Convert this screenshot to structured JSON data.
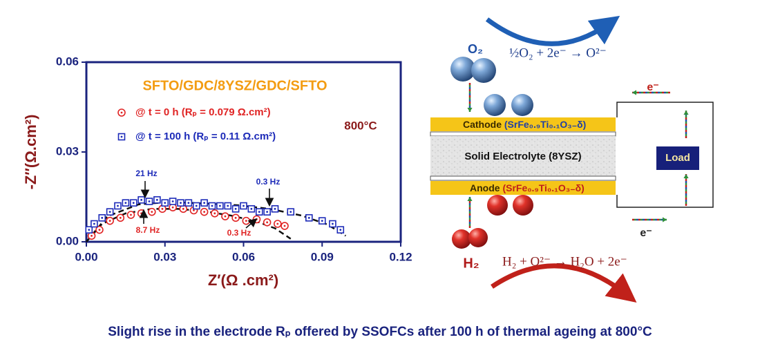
{
  "chart_data": {
    "type": "scatter",
    "title": "SFTO/GDC/8YSZ/GDC/SFTO",
    "title_color": "#f39c12",
    "x_label": "Z′(Ω .cm²)",
    "y_label": "-Z″(Ω.cm²)",
    "xlim": [
      0,
      0.12
    ],
    "ylim": [
      0,
      0.06
    ],
    "xticks": [
      {
        "value": 0,
        "label": "0.00"
      },
      {
        "value": 0.03,
        "label": "0.03"
      },
      {
        "value": 0.06,
        "label": "0.06"
      },
      {
        "value": 0.09,
        "label": "0.09"
      },
      {
        "value": 0.12,
        "label": "0.12"
      }
    ],
    "yticks": [
      {
        "value": 0,
        "label": "0.00"
      },
      {
        "value": 0.03,
        "label": "0.03"
      },
      {
        "value": 0.06,
        "label": "0.06"
      }
    ],
    "series": [
      {
        "name": "@ t = 0 h (Rₚ = 0.079 Ω.cm²)",
        "color": "#e02424",
        "marker": "circle",
        "x": [
          0.002,
          0.005,
          0.009,
          0.013,
          0.017,
          0.021,
          0.025,
          0.029,
          0.033,
          0.037,
          0.041,
          0.045,
          0.049,
          0.053,
          0.057,
          0.061,
          0.065,
          0.069,
          0.073,
          0.0757
        ],
        "values": [
          0.002,
          0.004,
          0.007,
          0.008,
          0.009,
          0.0095,
          0.01,
          0.011,
          0.0115,
          0.011,
          0.0105,
          0.01,
          0.0095,
          0.0085,
          0.008,
          0.007,
          0.0075,
          0.0065,
          0.006,
          0.0053
        ]
      },
      {
        "name": "@ t = 100 h (Rₚ = 0.11 Ω.cm²)",
        "color": "#1c2ab8",
        "marker": "square",
        "x": [
          0.001,
          0.003,
          0.006,
          0.009,
          0.012,
          0.015,
          0.018,
          0.021,
          0.024,
          0.027,
          0.03,
          0.033,
          0.036,
          0.039,
          0.042,
          0.045,
          0.048,
          0.051,
          0.054,
          0.057,
          0.06,
          0.063,
          0.066,
          0.069,
          0.072,
          0.078,
          0.085,
          0.09,
          0.094,
          0.097
        ],
        "values": [
          0.004,
          0.006,
          0.008,
          0.01,
          0.012,
          0.013,
          0.013,
          0.014,
          0.0135,
          0.014,
          0.013,
          0.0135,
          0.013,
          0.013,
          0.012,
          0.013,
          0.012,
          0.012,
          0.012,
          0.011,
          0.012,
          0.011,
          0.01,
          0.01,
          0.011,
          0.01,
          0.008,
          0.007,
          0.006,
          0.004
        ]
      }
    ],
    "fits": [
      {
        "color": "#111111",
        "x": [
          0,
          0.006,
          0.015,
          0.025,
          0.035,
          0.045,
          0.055,
          0.065,
          0.072,
          0.078
        ],
        "values": [
          0,
          0.006,
          0.0095,
          0.011,
          0.011,
          0.0102,
          0.0088,
          0.0068,
          0.0045,
          0.001
        ]
      },
      {
        "color": "#111111",
        "x": [
          0,
          0.008,
          0.02,
          0.032,
          0.045,
          0.058,
          0.07,
          0.082,
          0.092,
          0.099
        ],
        "values": [
          0,
          0.0085,
          0.0125,
          0.0133,
          0.0128,
          0.0122,
          0.011,
          0.0088,
          0.0058,
          0.002
        ]
      }
    ],
    "annotations": [
      {
        "text": "800°C",
        "color": "#8b1a1a"
      },
      {
        "text": "21 Hz",
        "color": "#1c2ab8"
      },
      {
        "text": "0.3 Hz",
        "color": "#1c2ab8"
      },
      {
        "text": "8.7 Hz",
        "color": "#e02424"
      },
      {
        "text": "0.3 Hz",
        "color": "#e02424"
      }
    ],
    "axis_color": "#1a237e",
    "label_color": "#8b1a1a"
  },
  "diagram": {
    "o2": "O₂",
    "cathode_reaction": "½O₂ + 2e⁻ → O²⁻",
    "electron_top": "e⁻",
    "electron_bottom": "e⁻",
    "cathode": "Cathode",
    "cathode_formula": "(SrFe₀.₉Ti₀.₁O₃₋δ)",
    "electrolyte": "Solid Electrolyte (8YSZ)",
    "anode": "Anode",
    "anode_formula": "(SrFe₀.₉Ti₀.₁O₃₋δ)",
    "load": "Load",
    "h2": "H₂",
    "anode_reaction": "H₂ + O²⁻ → H₂O + 2e⁻"
  },
  "caption": "Slight rise in the electrode Rₚ offered by SSOFCs after 100 h of thermal ageing at 800°C"
}
